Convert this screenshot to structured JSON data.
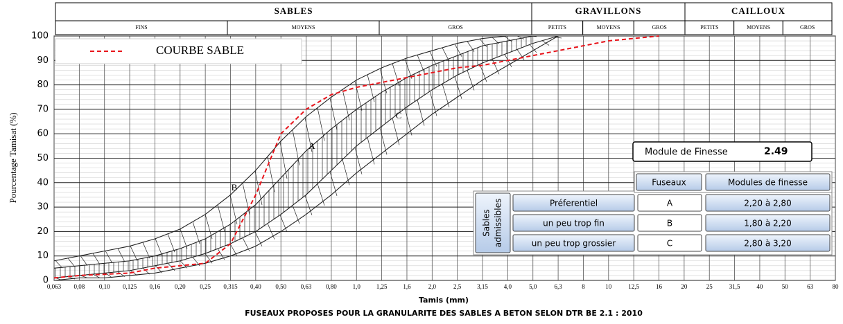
{
  "chart_data": {
    "type": "line",
    "title": "FUSEAUX PROPOSES POUR LA GRANULARITE DES SABLES A BETON SELON DTR BE 2.1 : 2010",
    "x_label": "Tamis (mm)",
    "y_label": "Pourcentage Tamisat (%)",
    "categories": [
      "0,063",
      "0,08",
      "0,10",
      "0,125",
      "0,16",
      "0,20",
      "0,25",
      "0,315",
      "0,40",
      "0,50",
      "0,63",
      "0,80",
      "1,0",
      "1,25",
      "1,6",
      "2,0",
      "2,5",
      "3,15",
      "4,0",
      "5,0",
      "6,3",
      "8",
      "10",
      "12,5",
      "16",
      "20",
      "25",
      "31,5",
      "40",
      "50",
      "63",
      "80"
    ],
    "series": [
      {
        "name": "COURBE SABLE",
        "color": "#e8141b",
        "values": [
          1,
          2,
          2.5,
          3,
          5,
          6,
          7,
          15,
          35,
          60,
          70,
          76,
          79,
          81,
          83,
          85,
          87,
          88,
          90,
          92,
          94,
          96,
          98,
          99,
          100,
          null,
          null,
          null,
          null,
          null,
          null,
          null
        ]
      }
    ],
    "envelopes": [
      {
        "values": [
          8,
          10,
          12,
          14,
          17,
          21,
          27,
          35,
          45,
          57,
          67,
          75,
          82,
          87,
          91,
          94,
          97,
          99,
          100,
          100,
          null,
          null,
          null,
          null,
          null,
          null,
          null,
          null,
          null,
          null,
          null,
          null
        ]
      },
      {
        "values": [
          5,
          6,
          7,
          8,
          10,
          13,
          17,
          23,
          31,
          42,
          53,
          62,
          70,
          77,
          83,
          88,
          92,
          96,
          98,
          100,
          null,
          null,
          null,
          null,
          null,
          null,
          null,
          null,
          null,
          null,
          null,
          null
        ]
      },
      {
        "values": [
          1,
          2,
          3,
          4,
          6,
          8,
          11,
          15,
          20,
          27,
          35,
          45,
          55,
          63,
          71,
          78,
          84,
          89,
          93,
          97,
          100,
          null,
          null,
          null,
          null,
          null,
          null,
          null,
          null,
          null,
          null,
          null
        ]
      },
      {
        "values": [
          0,
          1,
          1,
          2,
          3,
          5,
          7,
          10,
          14,
          20,
          27,
          35,
          44,
          52,
          60,
          68,
          75,
          82,
          88,
          94,
          100,
          null,
          null,
          null,
          null,
          null,
          null,
          null,
          null,
          null,
          null,
          null
        ]
      }
    ],
    "annotations": [
      "A",
      "B",
      "C"
    ],
    "ylim": [
      0,
      100
    ],
    "yticks": [
      0,
      10,
      20,
      30,
      40,
      50,
      60,
      70,
      80,
      90,
      100
    ],
    "grid": true
  },
  "header": {
    "groups": [
      {
        "label": "SABLES",
        "subs": [
          "FINS",
          "MOYENS",
          "GROS"
        ]
      },
      {
        "label": "GRAVILLONS",
        "subs": [
          "PETITS",
          "MOYENS",
          "GROS"
        ]
      },
      {
        "label": "CAILLOUX",
        "subs": [
          "PETITS",
          "MOYENS",
          "GROS"
        ]
      }
    ]
  },
  "module_finesse": {
    "label": "Module de Finesse",
    "value": 2.49
  },
  "table": {
    "row_group": [
      "Sables",
      "admissibles"
    ],
    "columns": [
      "Fuseaux",
      "Modules de finesse"
    ],
    "rows": [
      [
        "Préferentiel",
        "A",
        "2,20 à 2,80"
      ],
      [
        "un peu trop fin",
        "B",
        "1,80 à 2,20"
      ],
      [
        "un peu trop grossier",
        "C",
        "2,80 à 3,20"
      ]
    ]
  }
}
